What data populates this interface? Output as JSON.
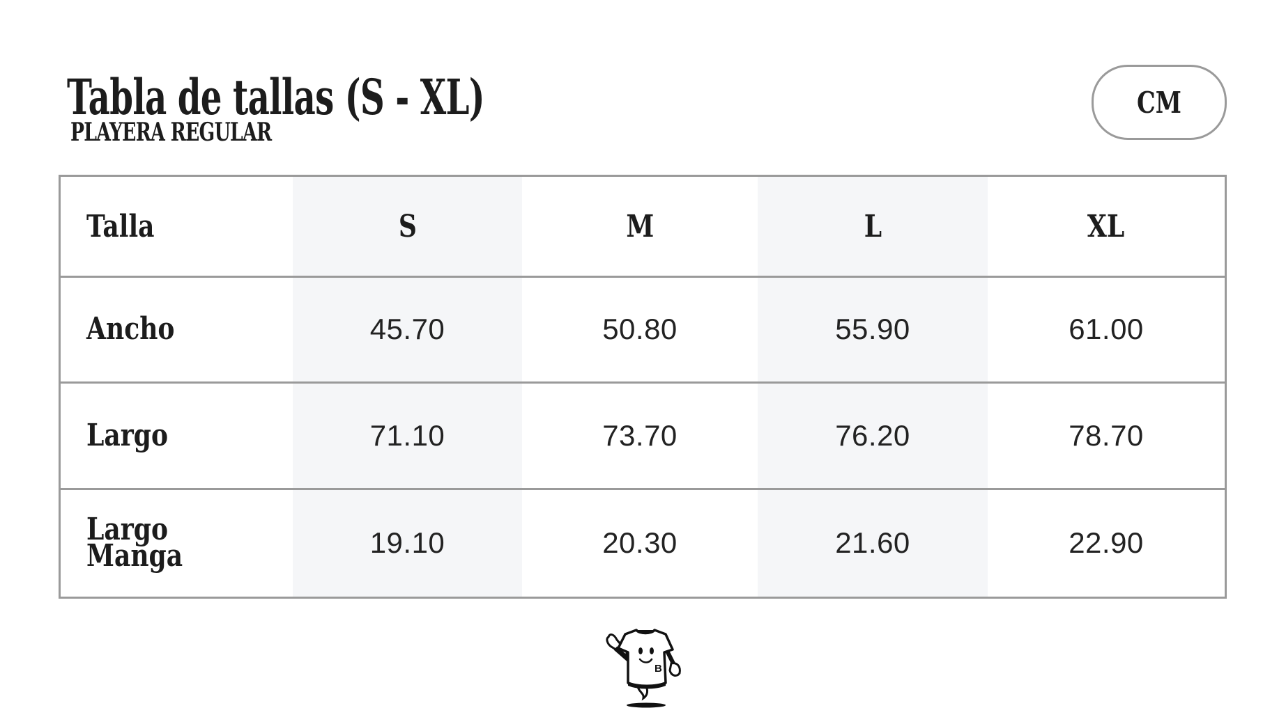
{
  "header": {
    "title": "Tabla de tallas (S - XL)",
    "subtitle": "PLAYERA REGULAR",
    "unit": "CM"
  },
  "table": {
    "corner_label": "Talla",
    "columns": [
      "S",
      "M",
      "L",
      "XL"
    ],
    "rows": [
      {
        "label": "Ancho",
        "values": [
          "45.70",
          "50.80",
          "55.90",
          "61.00"
        ]
      },
      {
        "label": "Largo",
        "values": [
          "71.10",
          "73.70",
          "76.20",
          "78.70"
        ]
      },
      {
        "label": "Largo Manga",
        "values": [
          "19.10",
          "20.30",
          "21.60",
          "22.90"
        ]
      }
    ]
  },
  "mascot": {
    "icon": "t-shirt-mascot",
    "logo_letter": "B"
  },
  "colors": {
    "border": "#9a9a9a",
    "shade": "#f5f6f8",
    "text": "#1c1c1c"
  }
}
